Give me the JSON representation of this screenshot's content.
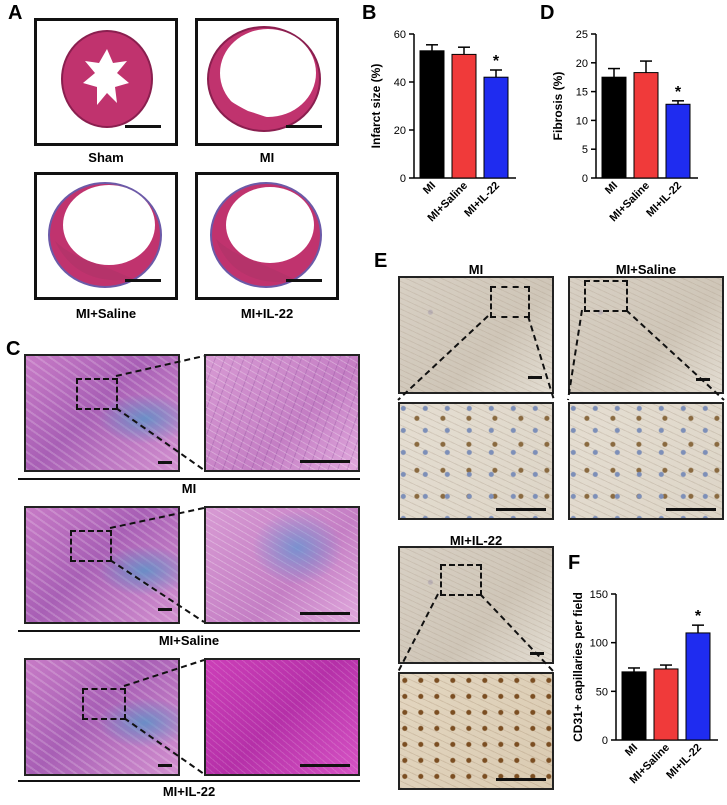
{
  "panels": {
    "A": {
      "label": "A",
      "captions": [
        "Sham",
        "MI",
        "MI+Saline",
        "MI+IL-22"
      ],
      "colors": {
        "tissue": "#c0336e",
        "outline": "#8a1f4f"
      }
    },
    "C": {
      "label": "C",
      "captions": [
        "MI",
        "MI+Saline",
        "MI+IL-22"
      ]
    },
    "E": {
      "label": "E",
      "captions": [
        "MI",
        "MI+Saline",
        "MI+IL-22"
      ]
    },
    "B": {
      "label": "B"
    },
    "D": {
      "label": "D"
    },
    "F": {
      "label": "F"
    }
  },
  "chart_data": [
    {
      "id": "B",
      "type": "bar",
      "categories": [
        "MI",
        "MI+Saline",
        "MI+IL-22"
      ],
      "values": [
        53,
        51.5,
        42
      ],
      "errors": [
        2.5,
        3,
        3
      ],
      "colors": [
        "#000000",
        "#f03a3a",
        "#1f2cf0"
      ],
      "annotations": [
        "",
        "",
        "*"
      ],
      "ylabel": "Infarct size (%)",
      "ylim": [
        0,
        60
      ],
      "yticks": [
        0,
        20,
        40,
        60
      ]
    },
    {
      "id": "D",
      "type": "bar",
      "categories": [
        "MI",
        "MI+Saline",
        "MI+IL-22"
      ],
      "values": [
        17.5,
        18.3,
        12.8
      ],
      "errors": [
        1.5,
        2,
        0.6
      ],
      "colors": [
        "#000000",
        "#f03a3a",
        "#1f2cf0"
      ],
      "annotations": [
        "",
        "",
        "*"
      ],
      "ylabel": "Fibrosis (%)",
      "ylim": [
        0,
        25
      ],
      "yticks": [
        0,
        5,
        10,
        15,
        20,
        25
      ]
    },
    {
      "id": "F",
      "type": "bar",
      "categories": [
        "MI",
        "MI+Saline",
        "MI+IL-22"
      ],
      "values": [
        70,
        73,
        110
      ],
      "errors": [
        4,
        4,
        8
      ],
      "colors": [
        "#000000",
        "#f03a3a",
        "#1f2cf0"
      ],
      "annotations": [
        "",
        "",
        "*"
      ],
      "ylabel": "CD31+ capillaries per field",
      "ylim": [
        0,
        150
      ],
      "yticks": [
        0,
        50,
        100,
        150
      ]
    }
  ]
}
